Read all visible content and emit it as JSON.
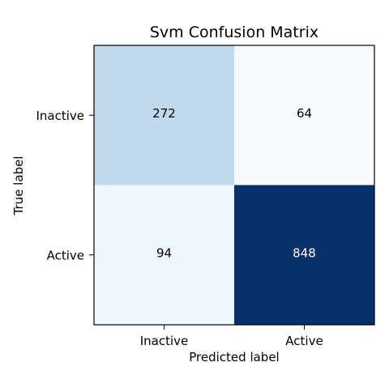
{
  "chart_data": {
    "type": "heatmap",
    "title": "Svm Confusion Matrix",
    "xlabel": "Predicted label",
    "ylabel": "True label",
    "x_categories": [
      "Inactive",
      "Active"
    ],
    "y_categories": [
      "Inactive",
      "Active"
    ],
    "values": [
      [
        272,
        64
      ],
      [
        94,
        848
      ]
    ],
    "colormap": {
      "name": "Blues",
      "low_color": "#f7fbff",
      "high_color": "#08306b"
    },
    "text_colors": {
      "dark_text": "#000000",
      "light_text": "#ffffff"
    }
  }
}
